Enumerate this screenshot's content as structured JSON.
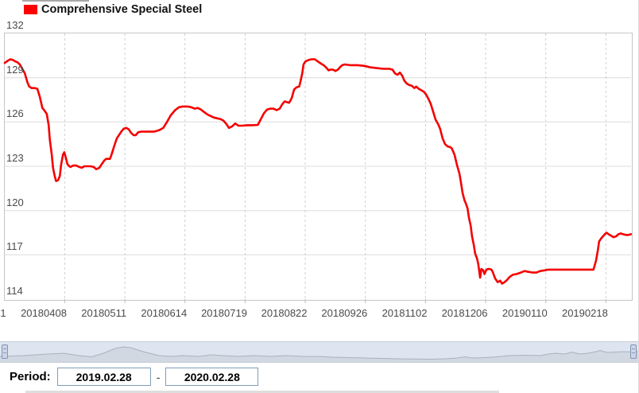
{
  "legend": {
    "label": "Comprehensive Special Steel",
    "color": "#ff0000"
  },
  "period": {
    "label": "Period:",
    "from": "2019.02.28",
    "separator": "-",
    "to": "2020.02.28"
  },
  "chart_data": {
    "type": "line",
    "title": "Comprehensive Special Steel",
    "ylabel": "",
    "xlabel": "",
    "ylim": [
      114,
      132
    ],
    "yticks": [
      132,
      129,
      126,
      123,
      120,
      117,
      114
    ],
    "x_tick_labels": [
      "1",
      "20180408",
      "20180511",
      "20180614",
      "20180719",
      "20180822",
      "20180926",
      "20181102",
      "20181206",
      "20190110",
      "20190218"
    ],
    "grid": true,
    "legend_position": "top-left",
    "series": [
      {
        "name": "Comprehensive Special Steel",
        "color": "#f40000",
        "points": [
          [
            0.0,
            130.0
          ],
          [
            0.005,
            130.15
          ],
          [
            0.009,
            130.25
          ],
          [
            0.013,
            130.2
          ],
          [
            0.017,
            130.1
          ],
          [
            0.02,
            130.05
          ],
          [
            0.024,
            129.9
          ],
          [
            0.028,
            129.6
          ],
          [
            0.032,
            129.3
          ],
          [
            0.036,
            128.7
          ],
          [
            0.039,
            128.4
          ],
          [
            0.043,
            128.3
          ],
          [
            0.048,
            128.3
          ],
          [
            0.052,
            128.25
          ],
          [
            0.056,
            127.7
          ],
          [
            0.06,
            126.95
          ],
          [
            0.063,
            126.8
          ],
          [
            0.067,
            126.55
          ],
          [
            0.07,
            125.8
          ],
          [
            0.072,
            124.8
          ],
          [
            0.075,
            123.8
          ],
          [
            0.077,
            122.9
          ],
          [
            0.08,
            122.3
          ],
          [
            0.082,
            122.0
          ],
          [
            0.085,
            122.05
          ],
          [
            0.088,
            122.35
          ],
          [
            0.09,
            123.1
          ],
          [
            0.093,
            123.8
          ],
          [
            0.095,
            123.95
          ],
          [
            0.098,
            123.5
          ],
          [
            0.1,
            123.15
          ],
          [
            0.103,
            123.0
          ],
          [
            0.105,
            122.95
          ],
          [
            0.109,
            123.05
          ],
          [
            0.114,
            123.05
          ],
          [
            0.119,
            122.95
          ],
          [
            0.123,
            122.9
          ],
          [
            0.127,
            123.0
          ],
          [
            0.132,
            123.0
          ],
          [
            0.137,
            123.0
          ],
          [
            0.142,
            122.95
          ],
          [
            0.146,
            122.8
          ],
          [
            0.151,
            122.9
          ],
          [
            0.155,
            123.15
          ],
          [
            0.159,
            123.4
          ],
          [
            0.162,
            123.5
          ],
          [
            0.168,
            123.5
          ],
          [
            0.171,
            123.85
          ],
          [
            0.175,
            124.4
          ],
          [
            0.179,
            124.9
          ],
          [
            0.183,
            125.15
          ],
          [
            0.186,
            125.35
          ],
          [
            0.19,
            125.55
          ],
          [
            0.194,
            125.6
          ],
          [
            0.198,
            125.5
          ],
          [
            0.202,
            125.25
          ],
          [
            0.206,
            125.1
          ],
          [
            0.209,
            125.1
          ],
          [
            0.213,
            125.3
          ],
          [
            0.218,
            125.35
          ],
          [
            0.228,
            125.35
          ],
          [
            0.239,
            125.35
          ],
          [
            0.247,
            125.45
          ],
          [
            0.253,
            125.6
          ],
          [
            0.259,
            126.0
          ],
          [
            0.265,
            126.45
          ],
          [
            0.272,
            126.8
          ],
          [
            0.278,
            127.0
          ],
          [
            0.284,
            127.05
          ],
          [
            0.292,
            127.05
          ],
          [
            0.298,
            127.0
          ],
          [
            0.303,
            126.9
          ],
          [
            0.308,
            126.95
          ],
          [
            0.313,
            126.85
          ],
          [
            0.319,
            126.65
          ],
          [
            0.324,
            126.5
          ],
          [
            0.329,
            126.4
          ],
          [
            0.334,
            126.3
          ],
          [
            0.339,
            126.25
          ],
          [
            0.344,
            126.2
          ],
          [
            0.349,
            126.1
          ],
          [
            0.354,
            125.85
          ],
          [
            0.358,
            125.6
          ],
          [
            0.363,
            125.7
          ],
          [
            0.368,
            125.9
          ],
          [
            0.373,
            125.75
          ],
          [
            0.379,
            125.75
          ],
          [
            0.387,
            125.78
          ],
          [
            0.395,
            125.78
          ],
          [
            0.404,
            125.8
          ],
          [
            0.409,
            126.2
          ],
          [
            0.414,
            126.6
          ],
          [
            0.419,
            126.85
          ],
          [
            0.424,
            126.9
          ],
          [
            0.429,
            126.9
          ],
          [
            0.434,
            126.8
          ],
          [
            0.439,
            126.9
          ],
          [
            0.443,
            127.2
          ],
          [
            0.447,
            127.4
          ],
          [
            0.45,
            127.35
          ],
          [
            0.454,
            127.3
          ],
          [
            0.458,
            127.6
          ],
          [
            0.462,
            128.2
          ],
          [
            0.466,
            128.35
          ],
          [
            0.47,
            128.4
          ],
          [
            0.472,
            128.7
          ],
          [
            0.475,
            129.3
          ],
          [
            0.477,
            129.9
          ],
          [
            0.48,
            130.1
          ],
          [
            0.485,
            130.2
          ],
          [
            0.49,
            130.25
          ],
          [
            0.495,
            130.25
          ],
          [
            0.5,
            130.1
          ],
          [
            0.505,
            129.95
          ],
          [
            0.509,
            129.85
          ],
          [
            0.513,
            129.7
          ],
          [
            0.517,
            129.5
          ],
          [
            0.52,
            129.55
          ],
          [
            0.524,
            129.55
          ],
          [
            0.528,
            129.45
          ],
          [
            0.532,
            129.55
          ],
          [
            0.536,
            129.75
          ],
          [
            0.539,
            129.85
          ],
          [
            0.543,
            129.9
          ],
          [
            0.551,
            129.85
          ],
          [
            0.563,
            129.85
          ],
          [
            0.574,
            129.8
          ],
          [
            0.584,
            129.7
          ],
          [
            0.594,
            129.65
          ],
          [
            0.604,
            129.6
          ],
          [
            0.614,
            129.6
          ],
          [
            0.619,
            129.55
          ],
          [
            0.623,
            129.3
          ],
          [
            0.627,
            129.2
          ],
          [
            0.631,
            129.35
          ],
          [
            0.635,
            129.1
          ],
          [
            0.638,
            128.8
          ],
          [
            0.642,
            128.6
          ],
          [
            0.646,
            128.5
          ],
          [
            0.65,
            128.45
          ],
          [
            0.654,
            128.3
          ],
          [
            0.657,
            128.4
          ],
          [
            0.661,
            128.25
          ],
          [
            0.665,
            128.15
          ],
          [
            0.669,
            128.05
          ],
          [
            0.673,
            127.85
          ],
          [
            0.676,
            127.6
          ],
          [
            0.68,
            127.25
          ],
          [
            0.684,
            126.7
          ],
          [
            0.688,
            126.15
          ],
          [
            0.692,
            125.85
          ],
          [
            0.695,
            125.55
          ],
          [
            0.699,
            124.9
          ],
          [
            0.703,
            124.5
          ],
          [
            0.707,
            124.35
          ],
          [
            0.711,
            124.3
          ],
          [
            0.714,
            124.2
          ],
          [
            0.718,
            123.8
          ],
          [
            0.722,
            123.1
          ],
          [
            0.726,
            122.5
          ],
          [
            0.728,
            122.0
          ],
          [
            0.731,
            121.2
          ],
          [
            0.734,
            120.7
          ],
          [
            0.736,
            120.5
          ],
          [
            0.739,
            120.15
          ],
          [
            0.741,
            119.55
          ],
          [
            0.744,
            118.95
          ],
          [
            0.746,
            118.3
          ],
          [
            0.749,
            117.65
          ],
          [
            0.751,
            117.1
          ],
          [
            0.754,
            116.75
          ],
          [
            0.756,
            116.4
          ],
          [
            0.759,
            115.45
          ],
          [
            0.761,
            116.05
          ],
          [
            0.764,
            115.95
          ],
          [
            0.766,
            115.7
          ],
          [
            0.769,
            116.0
          ],
          [
            0.773,
            116.05
          ],
          [
            0.777,
            116.0
          ],
          [
            0.779,
            115.85
          ],
          [
            0.783,
            115.4
          ],
          [
            0.787,
            115.15
          ],
          [
            0.791,
            115.25
          ],
          [
            0.794,
            115.05
          ],
          [
            0.798,
            115.15
          ],
          [
            0.802,
            115.3
          ],
          [
            0.806,
            115.5
          ],
          [
            0.811,
            115.65
          ],
          [
            0.817,
            115.7
          ],
          [
            0.824,
            115.8
          ],
          [
            0.83,
            115.9
          ],
          [
            0.836,
            115.85
          ],
          [
            0.843,
            115.8
          ],
          [
            0.849,
            115.8
          ],
          [
            0.855,
            115.9
          ],
          [
            0.862,
            115.95
          ],
          [
            0.868,
            116.0
          ],
          [
            0.881,
            116.0
          ],
          [
            0.9,
            116.0
          ],
          [
            0.919,
            116.0
          ],
          [
            0.94,
            116.0
          ],
          [
            0.944,
            116.6
          ],
          [
            0.947,
            117.3
          ],
          [
            0.949,
            117.9
          ],
          [
            0.952,
            118.1
          ],
          [
            0.954,
            118.2
          ],
          [
            0.958,
            118.4
          ],
          [
            0.961,
            118.5
          ],
          [
            0.964,
            118.4
          ],
          [
            0.968,
            118.3
          ],
          [
            0.972,
            118.2
          ],
          [
            0.976,
            118.25
          ],
          [
            0.98,
            118.4
          ],
          [
            0.984,
            118.45
          ],
          [
            0.987,
            118.4
          ],
          [
            0.992,
            118.35
          ],
          [
            0.996,
            118.35
          ],
          [
            1.0,
            118.4
          ]
        ]
      }
    ]
  },
  "navigator": {
    "profile": [
      [
        0.0,
        0.72
      ],
      [
        0.037,
        0.68
      ],
      [
        0.075,
        0.6
      ],
      [
        0.1,
        0.56
      ],
      [
        0.124,
        0.68
      ],
      [
        0.143,
        0.74
      ],
      [
        0.162,
        0.56
      ],
      [
        0.18,
        0.32
      ],
      [
        0.193,
        0.24
      ],
      [
        0.205,
        0.28
      ],
      [
        0.224,
        0.48
      ],
      [
        0.249,
        0.68
      ],
      [
        0.267,
        0.72
      ],
      [
        0.286,
        0.68
      ],
      [
        0.311,
        0.72
      ],
      [
        0.33,
        0.64
      ],
      [
        0.348,
        0.68
      ],
      [
        0.373,
        0.72
      ],
      [
        0.398,
        0.68
      ],
      [
        0.423,
        0.72
      ],
      [
        0.448,
        0.68
      ],
      [
        0.473,
        0.72
      ],
      [
        0.498,
        0.72
      ],
      [
        0.522,
        0.76
      ],
      [
        0.547,
        0.78
      ],
      [
        0.572,
        0.8
      ],
      [
        0.597,
        0.82
      ],
      [
        0.622,
        0.84
      ],
      [
        0.672,
        0.86
      ],
      [
        0.697,
        0.84
      ],
      [
        0.715,
        0.8
      ],
      [
        0.728,
        0.74
      ],
      [
        0.734,
        0.78
      ],
      [
        0.746,
        0.8
      ],
      [
        0.771,
        0.76
      ],
      [
        0.796,
        0.68
      ],
      [
        0.821,
        0.66
      ],
      [
        0.846,
        0.68
      ],
      [
        0.858,
        0.6
      ],
      [
        0.871,
        0.56
      ],
      [
        0.883,
        0.6
      ],
      [
        0.889,
        0.56
      ],
      [
        0.896,
        0.5
      ],
      [
        0.902,
        0.56
      ],
      [
        0.908,
        0.6
      ],
      [
        0.92,
        0.56
      ],
      [
        0.933,
        0.48
      ],
      [
        0.939,
        0.42
      ],
      [
        0.945,
        0.48
      ],
      [
        0.951,
        0.52
      ],
      [
        0.964,
        0.5
      ],
      [
        0.976,
        0.48
      ],
      [
        0.989,
        0.5
      ],
      [
        1.0,
        0.48
      ]
    ]
  }
}
